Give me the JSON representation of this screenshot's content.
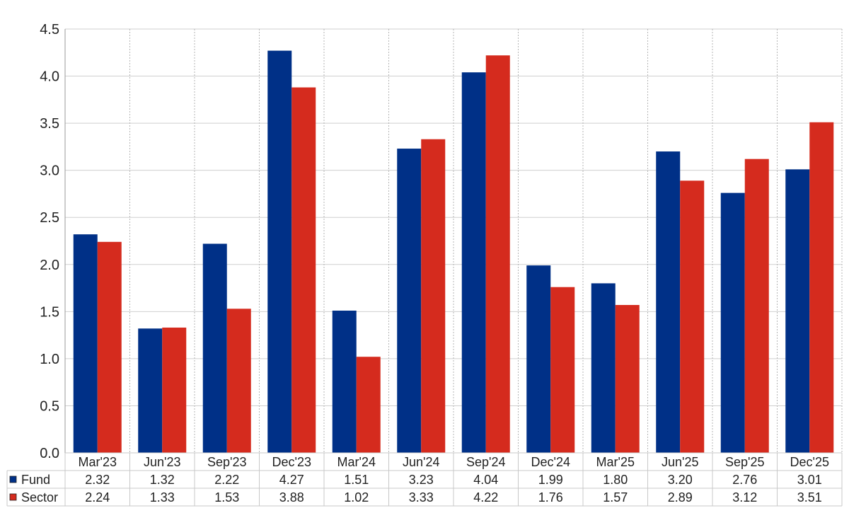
{
  "chart_data": {
    "type": "bar",
    "categories": [
      "Mar'23",
      "Jun'23",
      "Sep'23",
      "Dec'23",
      "Mar'24",
      "Jun'24",
      "Sep'24",
      "Dec'24",
      "Mar'25",
      "Jun'25",
      "Sep'25",
      "Dec'25"
    ],
    "series": [
      {
        "name": "Fund",
        "color": "#003087",
        "values": [
          2.32,
          1.32,
          2.22,
          4.27,
          1.51,
          3.23,
          4.04,
          1.99,
          1.8,
          3.2,
          2.76,
          3.01
        ],
        "labels": [
          "2.32",
          "1.32",
          "2.22",
          "4.27",
          "1.51",
          "3.23",
          "4.04",
          "1.99",
          "1.80",
          "3.20",
          "2.76",
          "3.01"
        ]
      },
      {
        "name": "Sector",
        "color": "#d52b1e",
        "values": [
          2.24,
          1.33,
          1.53,
          3.88,
          1.02,
          3.33,
          4.22,
          1.76,
          1.57,
          2.89,
          3.12,
          3.51
        ],
        "labels": [
          "2.24",
          "1.33",
          "1.53",
          "3.88",
          "1.02",
          "3.33",
          "4.22",
          "1.76",
          "1.57",
          "2.89",
          "3.12",
          "3.51"
        ]
      }
    ],
    "ylim": [
      0,
      4.5
    ],
    "yticks": [
      "0.0",
      "0.5",
      "1.0",
      "1.5",
      "2.0",
      "2.5",
      "3.0",
      "3.5",
      "4.0",
      "4.5"
    ],
    "grid": true,
    "legend": "data-table"
  }
}
